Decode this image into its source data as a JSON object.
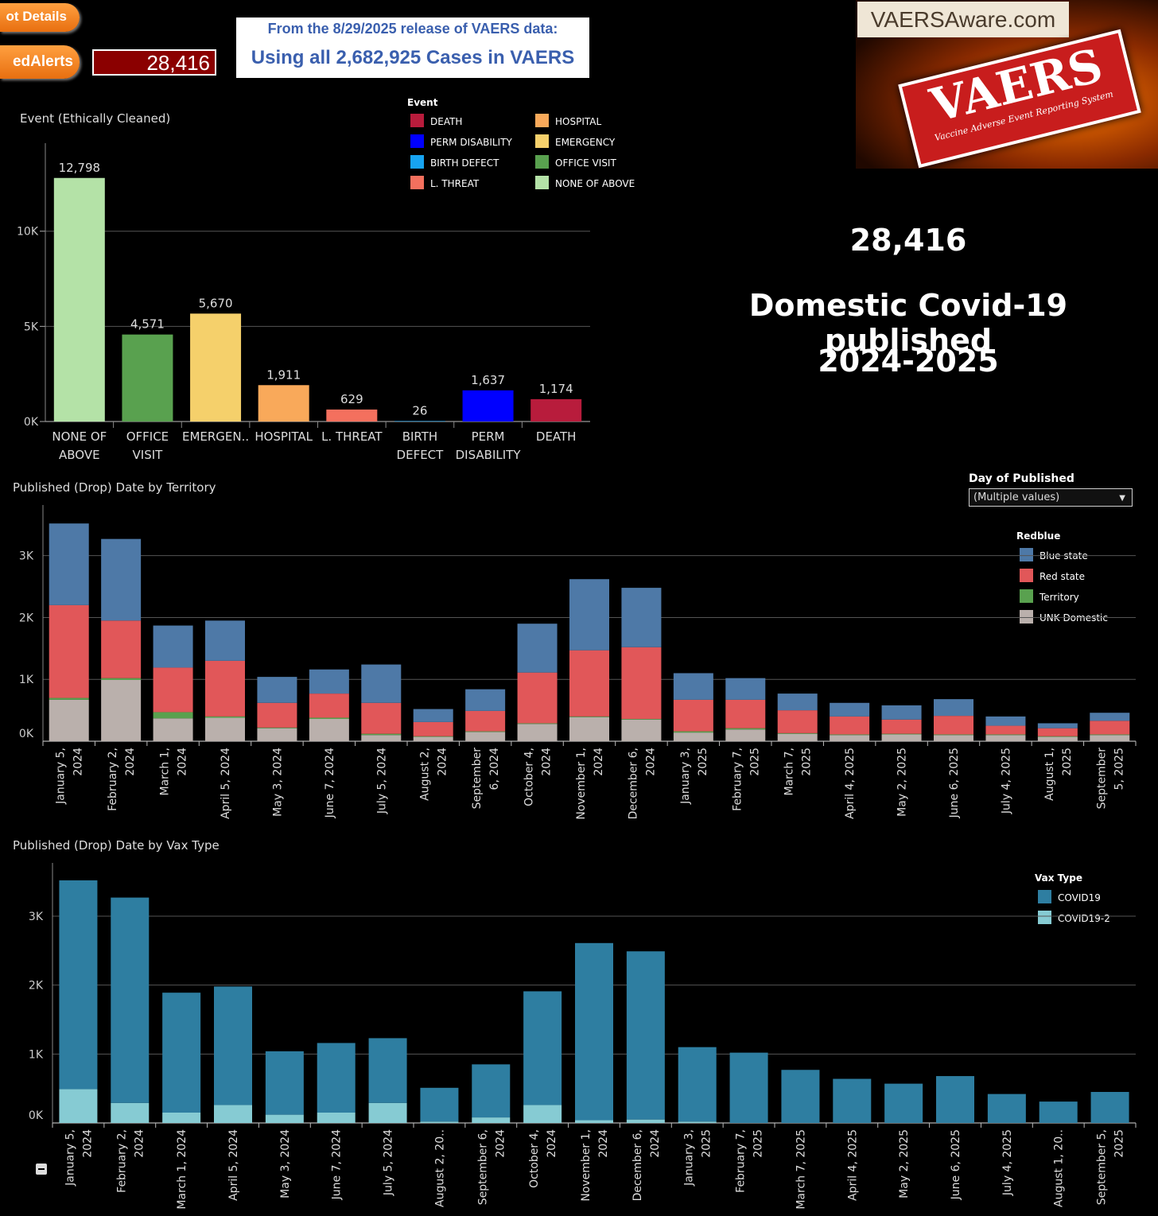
{
  "header": {
    "details_label": "ot Details",
    "alerts_label": "edAlerts",
    "total_count": "28,416",
    "release_line1": "From the 8/29/2025 release of VAERS data:",
    "release_line2": "Using all 2,682,925 Cases in VAERS"
  },
  "logo": {
    "site": "VAERSAware.com",
    "badge": "VAERS",
    "badge_sub": "Vaccine Adverse Event Reporting System"
  },
  "summary": {
    "count": "28,416",
    "line2": "Domestic Covid-19 published",
    "line3": "2024-2025"
  },
  "filter": {
    "label": "Day of Published",
    "value": "(Multiple values)"
  },
  "colors": {
    "death": "#b81c3c",
    "perm_disability": "#0000ff",
    "birth_defect": "#17a4f2",
    "l_threat": "#f4705e",
    "hospital": "#f9a95a",
    "emergency": "#f5d06b",
    "office_visit": "#59a14f",
    "none_of_above": "#b4e2a7",
    "blue_state": "#4e79a7",
    "red_state": "#e15759",
    "territory": "#59a14f",
    "unk_domestic": "#bab0ac",
    "covid19": "#2e7ea1",
    "covid19_2": "#86cbd3"
  },
  "chart_data": [
    {
      "type": "bar",
      "title": "Event (Ethically Cleaned)",
      "legend_title": "Event",
      "legend": [
        "DEATH",
        "HOSPITAL",
        "PERM DISABILITY",
        "EMERGENCY",
        "BIRTH DEFECT",
        "OFFICE VISIT",
        "L. THREAT",
        "NONE OF ABOVE"
      ],
      "categories": [
        [
          "NONE OF",
          "ABOVE"
        ],
        [
          "OFFICE",
          "VISIT"
        ],
        [
          "EMERGEN.."
        ],
        [
          "HOSPITAL"
        ],
        [
          "L. THREAT"
        ],
        [
          "BIRTH",
          "DEFECT"
        ],
        [
          "PERM",
          "DISABILITY"
        ],
        [
          "DEATH"
        ]
      ],
      "values": [
        12798,
        4571,
        5670,
        1911,
        629,
        26,
        1637,
        1174
      ],
      "value_labels": [
        "12,798",
        "4,571",
        "5,670",
        "1,911",
        "629",
        "26",
        "1,637",
        "1,174"
      ],
      "color_keys": [
        "none_of_above",
        "office_visit",
        "emergency",
        "hospital",
        "l_threat",
        "birth_defect",
        "perm_disability",
        "death"
      ],
      "yticks": [
        0,
        5000,
        10000
      ],
      "ytick_labels": [
        "0K",
        "5K",
        "10K"
      ],
      "ylim": [
        0,
        14000
      ]
    },
    {
      "type": "bar",
      "stacked": true,
      "title": "Published (Drop) Date by Territory",
      "legend_title": "Redblue",
      "categories": [
        [
          "January 5,",
          "2024"
        ],
        [
          "February 2,",
          "2024"
        ],
        [
          "March 1,",
          "2024"
        ],
        [
          "April 5, 2024"
        ],
        [
          "May 3, 2024"
        ],
        [
          "June 7, 2024"
        ],
        [
          "July 5, 2024"
        ],
        [
          "August 2,",
          "2024"
        ],
        [
          "September",
          "6, 2024"
        ],
        [
          "October 4,",
          "2024"
        ],
        [
          "November 1,",
          "2024"
        ],
        [
          "December 6,",
          "2024"
        ],
        [
          "January 3,",
          "2025"
        ],
        [
          "February 7,",
          "2025"
        ],
        [
          "March 7,",
          "2025"
        ],
        [
          "April 4, 2025"
        ],
        [
          "May 2, 2025"
        ],
        [
          "June 6, 2025"
        ],
        [
          "July 4, 2025"
        ],
        [
          "August 1,",
          "2025"
        ],
        [
          "September",
          "5, 2025"
        ]
      ],
      "series": [
        {
          "name": "UNK Domestic",
          "color_key": "unk_domestic",
          "values": [
            670,
            990,
            370,
            380,
            210,
            360,
            100,
            70,
            150,
            280,
            390,
            350,
            140,
            190,
            120,
            100,
            110,
            100,
            100,
            70,
            100
          ]
        },
        {
          "name": "Territory",
          "color_key": "territory",
          "values": [
            30,
            30,
            100,
            20,
            10,
            20,
            20,
            10,
            10,
            10,
            10,
            10,
            20,
            20,
            10,
            10,
            10,
            10,
            10,
            10,
            10
          ]
        },
        {
          "name": "Red state",
          "color_key": "red_state",
          "values": [
            1500,
            930,
            720,
            900,
            400,
            390,
            500,
            230,
            330,
            820,
            1070,
            1160,
            510,
            460,
            370,
            290,
            230,
            300,
            140,
            130,
            220
          ]
        },
        {
          "name": "Blue state",
          "color_key": "blue_state",
          "values": [
            1320,
            1320,
            680,
            650,
            420,
            390,
            620,
            210,
            350,
            790,
            1150,
            960,
            430,
            350,
            270,
            220,
            230,
            270,
            150,
            80,
            130
          ]
        }
      ],
      "yticks": [
        0,
        1000,
        2000,
        3000
      ],
      "ytick_labels": [
        "0K",
        "1K",
        "2K",
        "3K"
      ],
      "ylim": [
        0,
        3600
      ]
    },
    {
      "type": "bar",
      "stacked": true,
      "title": "Published (Drop) Date by Vax Type",
      "legend_title": "Vax Type",
      "categories": [
        [
          "January 5,",
          "2024"
        ],
        [
          "February 2,",
          "2024"
        ],
        [
          "March 1, 2024"
        ],
        [
          "April 5, 2024"
        ],
        [
          "May 3, 2024"
        ],
        [
          "June 7, 2024"
        ],
        [
          "July 5, 2024"
        ],
        [
          "August 2, 20.."
        ],
        [
          "September 6,",
          "2024"
        ],
        [
          "October 4,",
          "2024"
        ],
        [
          "November 1,",
          "2024"
        ],
        [
          "December 6,",
          "2024"
        ],
        [
          "January 3,",
          "2025"
        ],
        [
          "February 7,",
          "2025"
        ],
        [
          "March 7, 2025"
        ],
        [
          "April 4, 2025"
        ],
        [
          "May 2, 2025"
        ],
        [
          "June 6, 2025"
        ],
        [
          "July 4, 2025"
        ],
        [
          "August 1, 20.."
        ],
        [
          "September 5,",
          "2025"
        ]
      ],
      "series": [
        {
          "name": "COVID19-2",
          "color_key": "covid19_2",
          "values": [
            490,
            290,
            150,
            260,
            120,
            150,
            290,
            20,
            80,
            260,
            40,
            50,
            20,
            0,
            0,
            0,
            0,
            0,
            0,
            0,
            0
          ]
        },
        {
          "name": "COVID19",
          "color_key": "covid19",
          "values": [
            3030,
            2980,
            1740,
            1720,
            920,
            1010,
            940,
            490,
            770,
            1650,
            2570,
            2440,
            1080,
            1020,
            770,
            640,
            570,
            680,
            420,
            310,
            450
          ]
        }
      ],
      "legend": [
        "COVID19",
        "COVID19-2"
      ],
      "yticks": [
        0,
        1000,
        2000,
        3000
      ],
      "ytick_labels": [
        "0K",
        "1K",
        "2K",
        "3K"
      ],
      "ylim": [
        0,
        3600
      ]
    }
  ]
}
